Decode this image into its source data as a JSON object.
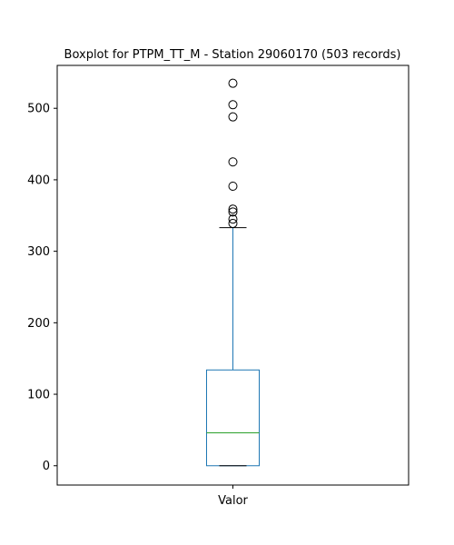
{
  "chart_data": {
    "type": "boxplot",
    "title": "Boxplot for PTPM_TT_M - Station 29060170 (503 records)",
    "categories": [
      "Valor"
    ],
    "xlabel": "",
    "ylabel": "",
    "ylim": [
      -27,
      560
    ],
    "yticks": [
      0,
      100,
      200,
      300,
      400,
      500
    ],
    "grid": false,
    "boxes": [
      {
        "category": "Valor",
        "whisker_low": 0,
        "q1": 0,
        "median": 46,
        "q3": 134,
        "whisker_high": 333,
        "outliers": [
          339,
          345,
          355,
          359,
          391,
          425,
          488,
          505,
          535
        ]
      }
    ],
    "colors": {
      "box": "#1f77b4",
      "whisker": "#1f77b4",
      "cap": "#000000",
      "median": "#2ca02c",
      "outlier_edge": "#000000"
    }
  }
}
